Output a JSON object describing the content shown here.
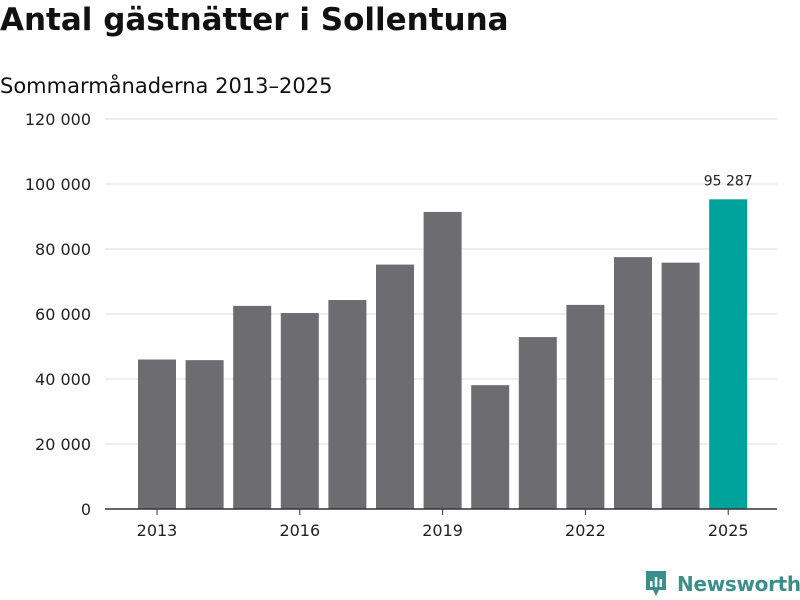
{
  "header": {
    "title": "Antal gästnätter i Sollentuna",
    "subtitle": "Sommarmånaderna 2013–2025"
  },
  "colors": {
    "bar": "#6d6c71",
    "highlight": "#00a39b",
    "grid": "#dddddd",
    "axis": "#333333",
    "brand": "#3b8f8a"
  },
  "brand": {
    "name": "Newsworthy",
    "icon": "newsworthy-logo-icon"
  },
  "chart_data": {
    "type": "bar",
    "title": "Antal gästnätter i Sollentuna",
    "subtitle": "Sommarmånaderna 2013–2025",
    "xlabel": "",
    "ylabel": "",
    "categories": [
      "2013",
      "2014",
      "2015",
      "2016",
      "2017",
      "2018",
      "2019",
      "2020",
      "2021",
      "2022",
      "2023",
      "2024",
      "2025"
    ],
    "values": [
      46000,
      45800,
      62500,
      60300,
      64300,
      75200,
      91400,
      38100,
      52900,
      62800,
      77500,
      75800,
      95287
    ],
    "highlight_index": 12,
    "data_labels": [
      {
        "index": 12,
        "text": "95 287"
      }
    ],
    "ylim": [
      0,
      120000
    ],
    "yticks": [
      0,
      20000,
      40000,
      60000,
      80000,
      100000,
      120000
    ],
    "ytick_labels": [
      "0",
      "20 000",
      "40 000",
      "60 000",
      "80 000",
      "100 000",
      "120 000"
    ],
    "xtick_labels": [
      "2013",
      "2016",
      "2019",
      "2022",
      "2025"
    ],
    "grid": true,
    "legend": "none"
  }
}
